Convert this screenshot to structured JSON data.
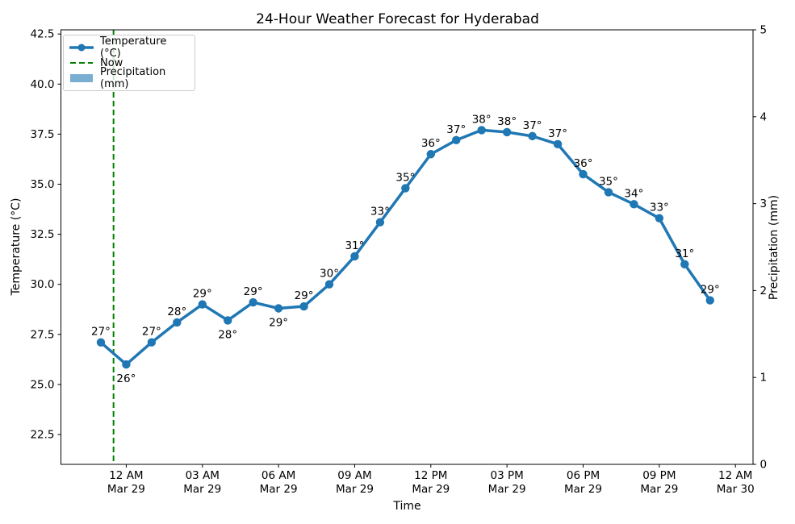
{
  "title": "24-Hour Weather Forecast for Hyderabad",
  "colors": {
    "temperature_line": "#1f77b4",
    "now_line": "#008000",
    "precipitation_fill": "#79add2",
    "text": "#000000",
    "spine": "#000000",
    "background": "#ffffff"
  },
  "legend": {
    "position": "upper left",
    "items": [
      {
        "label": "Temperature (°C)",
        "type": "line-marker",
        "color": "#1f77b4"
      },
      {
        "label": "Now",
        "type": "dashed-line",
        "color": "#008000"
      },
      {
        "label": "Precipitation (mm)",
        "type": "patch",
        "color": "#79add2"
      }
    ]
  },
  "axes": {
    "x_label": "Time",
    "y_left_label": "Temperature (°C)",
    "y_right_label": "Precipitation (mm)",
    "x_ticks": [
      {
        "hour": 1,
        "top": "12 AM",
        "bottom": "Mar 29"
      },
      {
        "hour": 4,
        "top": "03 AM",
        "bottom": "Mar 29"
      },
      {
        "hour": 7,
        "top": "06 AM",
        "bottom": "Mar 29"
      },
      {
        "hour": 10,
        "top": "09 AM",
        "bottom": "Mar 29"
      },
      {
        "hour": 13,
        "top": "12 PM",
        "bottom": "Mar 29"
      },
      {
        "hour": 16,
        "top": "03 PM",
        "bottom": "Mar 29"
      },
      {
        "hour": 19,
        "top": "06 PM",
        "bottom": "Mar 29"
      },
      {
        "hour": 22,
        "top": "09 PM",
        "bottom": "Mar 29"
      },
      {
        "hour": 25,
        "top": "12 AM",
        "bottom": "Mar 30"
      }
    ],
    "y_left_ticks": [
      {
        "value": 22.5,
        "label": "22.5"
      },
      {
        "value": 25.0,
        "label": "25.0"
      },
      {
        "value": 27.5,
        "label": "27.5"
      },
      {
        "value": 30.0,
        "label": "30.0"
      },
      {
        "value": 32.5,
        "label": "32.5"
      },
      {
        "value": 35.0,
        "label": "35.0"
      },
      {
        "value": 37.5,
        "label": "37.5"
      },
      {
        "value": 40.0,
        "label": "40.0"
      },
      {
        "value": 42.5,
        "label": "42.5"
      }
    ],
    "y_right_ticks": [
      {
        "value": 0,
        "label": "0"
      },
      {
        "value": 1,
        "label": "1"
      },
      {
        "value": 2,
        "label": "2"
      },
      {
        "value": 3,
        "label": "3"
      },
      {
        "value": 4,
        "label": "4"
      },
      {
        "value": 5,
        "label": "5"
      }
    ]
  },
  "chart_data": {
    "type": "line",
    "title": "24-Hour Weather Forecast for Hyderabad",
    "xlabel": "Time",
    "ylabel_left": "Temperature (°C)",
    "ylabel_right": "Precipitation (mm)",
    "ylim_left": [
      21.0,
      42.7
    ],
    "ylim_right": [
      0,
      5
    ],
    "grid": false,
    "x_times": [
      "11 PM Mar 28",
      "12 AM Mar 29",
      "01 AM Mar 29",
      "02 AM Mar 29",
      "03 AM Mar 29",
      "04 AM Mar 29",
      "05 AM Mar 29",
      "06 AM Mar 29",
      "07 AM Mar 29",
      "08 AM Mar 29",
      "09 AM Mar 29",
      "10 AM Mar 29",
      "11 AM Mar 29",
      "12 PM Mar 29",
      "01 PM Mar 29",
      "02 PM Mar 29",
      "03 PM Mar 29",
      "04 PM Mar 29",
      "05 PM Mar 29",
      "06 PM Mar 29",
      "07 PM Mar 29",
      "08 PM Mar 29",
      "09 PM Mar 29",
      "10 PM Mar 29",
      "11 PM Mar 29"
    ],
    "series": [
      {
        "name": "Temperature (°C)",
        "type": "line",
        "axis": "left",
        "values": [
          27.1,
          26.0,
          27.1,
          28.1,
          29.0,
          28.2,
          29.1,
          28.8,
          28.9,
          30.0,
          31.4,
          33.1,
          34.8,
          36.5,
          37.2,
          37.7,
          37.6,
          37.4,
          37.0,
          35.5,
          34.6,
          34.0,
          33.3,
          31.0,
          29.2
        ],
        "point_labels": [
          "27°",
          "26°",
          "27°",
          "28°",
          "29°",
          "28°",
          "29°",
          "29°",
          "29°",
          "30°",
          "31°",
          "33°",
          "35°",
          "36°",
          "37°",
          "38°",
          "38°",
          "37°",
          "37°",
          "36°",
          "35°",
          "34°",
          "33°",
          "31°",
          "29°"
        ],
        "label_side": [
          "above",
          "below",
          "above",
          "above",
          "above",
          "below",
          "above",
          "below",
          "above",
          "above",
          "above",
          "above",
          "above",
          "above",
          "above",
          "above",
          "above",
          "above",
          "above",
          "above",
          "above",
          "above",
          "above",
          "above",
          "above"
        ]
      },
      {
        "name": "Precipitation (mm)",
        "type": "bar",
        "axis": "right",
        "values": [
          0,
          0,
          0,
          0,
          0,
          0,
          0,
          0,
          0,
          0,
          0,
          0,
          0,
          0,
          0,
          0,
          0,
          0,
          0,
          0,
          0,
          0,
          0,
          0,
          0
        ]
      }
    ],
    "now_marker": {
      "x_index": 0.5,
      "label": "Now"
    }
  }
}
